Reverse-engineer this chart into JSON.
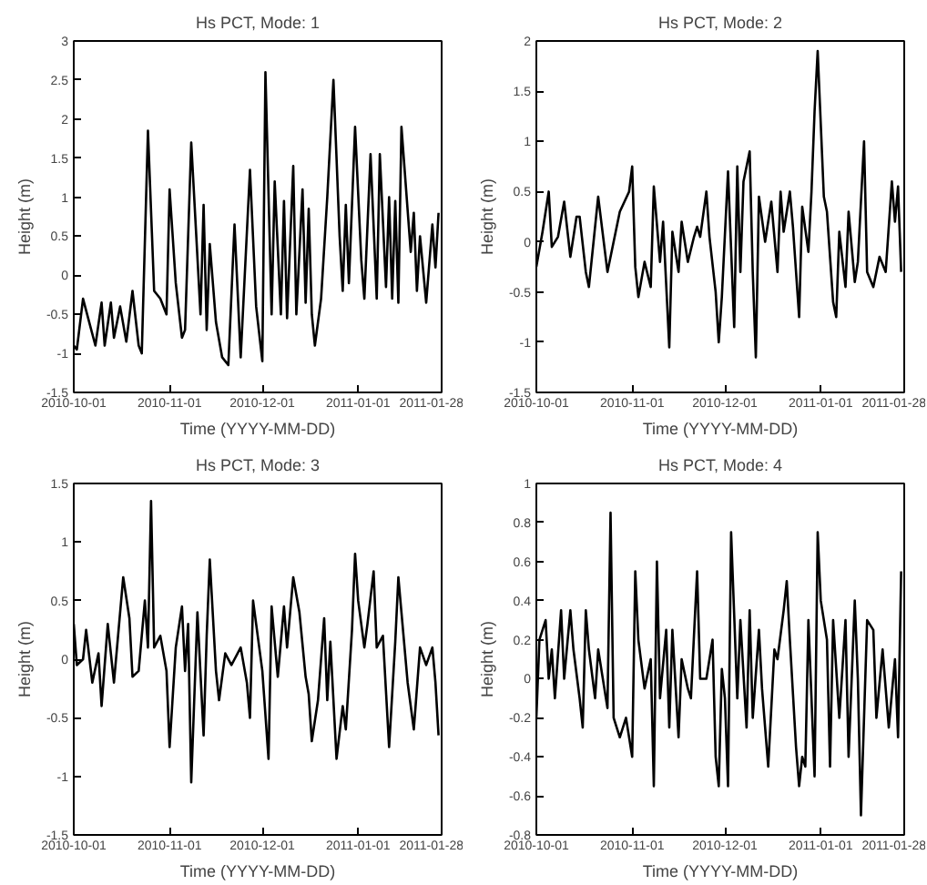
{
  "chart_data": [
    {
      "type": "line",
      "title": "Hs PCT, Mode: 1",
      "xlabel": "Time (YYYY-MM-DD)",
      "ylabel": "Height (m)",
      "color": "#000000",
      "grid": false,
      "xlim": [
        "2010-10-01",
        "2011-01-28"
      ],
      "xticks": [
        "2010-10-01",
        "2010-11-01",
        "2010-12-01",
        "2011-01-01",
        "2011-01-28"
      ],
      "ylim": [
        -1.5,
        3
      ],
      "yticks": [
        -1.5,
        -1,
        -0.5,
        0,
        0.5,
        1,
        1.5,
        2,
        2.5,
        3
      ],
      "x": [
        "2010-10-01",
        "2010-10-02",
        "2010-10-04",
        "2010-10-06",
        "2010-10-08",
        "2010-10-10",
        "2010-10-11",
        "2010-10-13",
        "2010-10-14",
        "2010-10-16",
        "2010-10-18",
        "2010-10-20",
        "2010-10-22",
        "2010-10-23",
        "2010-10-25",
        "2010-10-27",
        "2010-10-29",
        "2010-10-31",
        "2010-11-01",
        "2010-11-03",
        "2010-11-05",
        "2010-11-06",
        "2010-11-08",
        "2010-11-11",
        "2010-11-12",
        "2010-11-13",
        "2010-11-14",
        "2010-11-16",
        "2010-11-18",
        "2010-11-20",
        "2010-11-22",
        "2010-11-24",
        "2010-11-27",
        "2010-11-29",
        "2010-12-01",
        "2010-12-02",
        "2010-12-04",
        "2010-12-05",
        "2010-12-07",
        "2010-12-08",
        "2010-12-09",
        "2010-12-11",
        "2010-12-12",
        "2010-12-14",
        "2010-12-15",
        "2010-12-16",
        "2010-12-17",
        "2010-12-18",
        "2010-12-20",
        "2010-12-22",
        "2010-12-24",
        "2010-12-26",
        "2010-12-27",
        "2010-12-28",
        "2010-12-29",
        "2010-12-31",
        "2011-01-02",
        "2011-01-03",
        "2011-01-05",
        "2011-01-07",
        "2011-01-08",
        "2011-01-10",
        "2011-01-11",
        "2011-01-12",
        "2011-01-13",
        "2011-01-14",
        "2011-01-15",
        "2011-01-18",
        "2011-01-19",
        "2011-01-20",
        "2011-01-21",
        "2011-01-23",
        "2011-01-25",
        "2011-01-26",
        "2011-01-27"
      ],
      "values": [
        -0.9,
        -0.95,
        -0.3,
        -0.6,
        -0.9,
        -0.35,
        -0.9,
        -0.35,
        -0.8,
        -0.4,
        -0.85,
        -0.2,
        -0.9,
        -1.0,
        1.85,
        -0.2,
        -0.3,
        -0.5,
        1.1,
        -0.1,
        -0.8,
        -0.7,
        1.7,
        -0.5,
        0.9,
        -0.7,
        0.4,
        -0.6,
        -1.05,
        -1.15,
        0.65,
        -1.05,
        1.35,
        -0.4,
        -1.1,
        2.6,
        -0.5,
        1.2,
        -0.5,
        0.95,
        -0.55,
        1.4,
        -0.5,
        1.1,
        -0.35,
        0.85,
        -0.5,
        -0.9,
        -0.3,
        1.0,
        2.5,
        0.5,
        -0.2,
        0.9,
        -0.1,
        1.9,
        0.2,
        -0.3,
        1.55,
        -0.3,
        1.55,
        -0.15,
        1.0,
        -0.3,
        0.95,
        -0.35,
        1.9,
        0.3,
        0.8,
        -0.2,
        0.5,
        -0.35,
        0.65,
        0.1,
        0.8
      ]
    },
    {
      "type": "line",
      "title": "Hs PCT, Mode: 2",
      "xlabel": "Time (YYYY-MM-DD)",
      "ylabel": "Height (m)",
      "color": "#000000",
      "grid": false,
      "xlim": [
        "2010-10-01",
        "2011-01-28"
      ],
      "xticks": [
        "2010-10-01",
        "2010-11-01",
        "2010-12-01",
        "2011-01-01",
        "2011-01-28"
      ],
      "ylim": [
        -1.5,
        2
      ],
      "yticks": [
        -1.5,
        -1,
        -0.5,
        0,
        0.5,
        1,
        1.5,
        2
      ],
      "x": [
        "2010-10-01",
        "2010-10-03",
        "2010-10-05",
        "2010-10-06",
        "2010-10-08",
        "2010-10-10",
        "2010-10-12",
        "2010-10-14",
        "2010-10-15",
        "2010-10-17",
        "2010-10-18",
        "2010-10-21",
        "2010-10-24",
        "2010-10-26",
        "2010-10-28",
        "2010-10-31",
        "2010-11-01",
        "2010-11-02",
        "2010-11-03",
        "2010-11-05",
        "2010-11-07",
        "2010-11-08",
        "2010-11-10",
        "2010-11-11",
        "2010-11-13",
        "2010-11-14",
        "2010-11-16",
        "2010-11-17",
        "2010-11-19",
        "2010-11-21",
        "2010-11-22",
        "2010-11-23",
        "2010-11-25",
        "2010-11-26",
        "2010-11-28",
        "2010-11-29",
        "2010-11-30",
        "2010-12-02",
        "2010-12-04",
        "2010-12-05",
        "2010-12-06",
        "2010-12-07",
        "2010-12-09",
        "2010-12-10",
        "2010-12-11",
        "2010-12-12",
        "2010-12-14",
        "2010-12-16",
        "2010-12-18",
        "2010-12-19",
        "2010-12-20",
        "2010-12-22",
        "2010-12-23",
        "2010-12-25",
        "2010-12-26",
        "2010-12-28",
        "2010-12-29",
        "2010-12-30",
        "2010-12-31",
        "2011-01-02",
        "2011-01-03",
        "2011-01-05",
        "2011-01-06",
        "2011-01-07",
        "2011-01-09",
        "2011-01-10",
        "2011-01-12",
        "2011-01-13",
        "2011-01-15",
        "2011-01-16",
        "2011-01-18",
        "2011-01-20",
        "2011-01-22",
        "2011-01-24",
        "2011-01-25",
        "2011-01-26",
        "2011-01-27"
      ],
      "values": [
        -0.25,
        0.1,
        0.5,
        -0.05,
        0.05,
        0.4,
        -0.15,
        0.25,
        0.25,
        -0.3,
        -0.45,
        0.45,
        -0.3,
        0.0,
        0.3,
        0.5,
        0.75,
        -0.25,
        -0.55,
        -0.2,
        -0.45,
        0.55,
        -0.2,
        0.2,
        -1.05,
        0.1,
        -0.3,
        0.2,
        -0.2,
        0.05,
        0.15,
        0.05,
        0.5,
        0.05,
        -0.5,
        -1.0,
        -0.55,
        0.7,
        -0.85,
        0.75,
        -0.3,
        0.6,
        0.9,
        -0.3,
        -1.15,
        0.45,
        0.0,
        0.4,
        -0.3,
        0.5,
        0.1,
        0.5,
        0.15,
        -0.75,
        0.35,
        -0.1,
        0.5,
        1.3,
        1.9,
        0.45,
        0.3,
        -0.6,
        -0.75,
        0.1,
        -0.45,
        0.3,
        -0.4,
        -0.2,
        1.0,
        -0.3,
        -0.45,
        -0.15,
        -0.3,
        0.6,
        0.2,
        0.55,
        -0.3
      ]
    },
    {
      "type": "line",
      "title": "Hs PCT, Mode: 3",
      "xlabel": "Time (YYYY-MM-DD)",
      "ylabel": "Height (m)",
      "color": "#000000",
      "grid": false,
      "xlim": [
        "2010-10-01",
        "2011-01-28"
      ],
      "xticks": [
        "2010-10-01",
        "2010-11-01",
        "2010-12-01",
        "2011-01-01",
        "2011-01-28"
      ],
      "ylim": [
        -1.5,
        1.5
      ],
      "yticks": [
        -1.5,
        -1,
        -0.5,
        0,
        0.5,
        1,
        1.5
      ],
      "x": [
        "2010-10-01",
        "2010-10-02",
        "2010-10-04",
        "2010-10-05",
        "2010-10-07",
        "2010-10-09",
        "2010-10-10",
        "2010-10-12",
        "2010-10-14",
        "2010-10-15",
        "2010-10-17",
        "2010-10-19",
        "2010-10-20",
        "2010-10-22",
        "2010-10-24",
        "2010-10-25",
        "2010-10-26",
        "2010-10-27",
        "2010-10-29",
        "2010-10-31",
        "2010-11-01",
        "2010-11-03",
        "2010-11-05",
        "2010-11-06",
        "2010-11-07",
        "2010-11-08",
        "2010-11-10",
        "2010-11-12",
        "2010-11-13",
        "2010-11-14",
        "2010-11-16",
        "2010-11-17",
        "2010-11-19",
        "2010-11-21",
        "2010-11-24",
        "2010-11-26",
        "2010-11-27",
        "2010-11-28",
        "2010-11-29",
        "2010-12-01",
        "2010-12-03",
        "2010-12-04",
        "2010-12-06",
        "2010-12-08",
        "2010-12-09",
        "2010-12-11",
        "2010-12-13",
        "2010-12-15",
        "2010-12-16",
        "2010-12-17",
        "2010-12-19",
        "2010-12-21",
        "2010-12-22",
        "2010-12-23",
        "2010-12-25",
        "2010-12-27",
        "2010-12-28",
        "2010-12-30",
        "2010-12-31",
        "2011-01-01",
        "2011-01-03",
        "2011-01-04",
        "2011-01-06",
        "2011-01-07",
        "2011-01-09",
        "2011-01-11",
        "2011-01-13",
        "2011-01-14",
        "2011-01-15",
        "2011-01-17",
        "2011-01-19",
        "2011-01-21",
        "2011-01-23",
        "2011-01-25",
        "2011-01-26",
        "2011-01-27"
      ],
      "values": [
        0.3,
        -0.05,
        0.0,
        0.25,
        -0.2,
        0.05,
        -0.4,
        0.3,
        -0.2,
        0.1,
        0.7,
        0.35,
        -0.15,
        -0.1,
        0.5,
        0.1,
        1.35,
        0.1,
        0.2,
        -0.1,
        -0.75,
        0.1,
        0.45,
        -0.1,
        0.3,
        -1.05,
        0.4,
        -0.65,
        0.2,
        0.85,
        -0.1,
        -0.35,
        0.05,
        -0.05,
        0.1,
        -0.2,
        -0.5,
        0.5,
        0.3,
        -0.1,
        -0.85,
        0.45,
        -0.15,
        0.45,
        0.1,
        0.7,
        0.4,
        -0.15,
        -0.3,
        -0.7,
        -0.35,
        0.35,
        -0.35,
        0.15,
        -0.85,
        -0.4,
        -0.6,
        0.25,
        0.9,
        0.5,
        0.1,
        0.3,
        0.75,
        0.1,
        0.2,
        -0.75,
        0.15,
        0.7,
        0.4,
        -0.2,
        -0.6,
        0.1,
        -0.05,
        0.1,
        -0.2,
        -0.65
      ]
    },
    {
      "type": "line",
      "title": "Hs PCT, Mode: 4",
      "xlabel": "Time (YYYY-MM-DD)",
      "ylabel": "Height (m)",
      "color": "#000000",
      "grid": false,
      "xlim": [
        "2010-10-01",
        "2011-01-28"
      ],
      "xticks": [
        "2010-10-01",
        "2010-11-01",
        "2010-12-01",
        "2011-01-01",
        "2011-01-28"
      ],
      "ylim": [
        -0.8,
        1
      ],
      "yticks": [
        -0.8,
        -0.6,
        -0.4,
        -0.2,
        0,
        0.2,
        0.4,
        0.6,
        0.8,
        1
      ],
      "x": [
        "2010-10-01",
        "2010-10-02",
        "2010-10-04",
        "2010-10-05",
        "2010-10-06",
        "2010-10-07",
        "2010-10-09",
        "2010-10-10",
        "2010-10-12",
        "2010-10-13",
        "2010-10-15",
        "2010-10-16",
        "2010-10-17",
        "2010-10-18",
        "2010-10-20",
        "2010-10-21",
        "2010-10-23",
        "2010-10-24",
        "2010-10-25",
        "2010-10-26",
        "2010-10-28",
        "2010-10-30",
        "2010-11-01",
        "2010-11-02",
        "2010-11-03",
        "2010-11-05",
        "2010-11-07",
        "2010-11-08",
        "2010-11-09",
        "2010-11-10",
        "2010-11-12",
        "2010-11-13",
        "2010-11-14",
        "2010-11-16",
        "2010-11-17",
        "2010-11-19",
        "2010-11-20",
        "2010-11-22",
        "2010-11-23",
        "2010-11-25",
        "2010-11-27",
        "2010-11-28",
        "2010-11-29",
        "2010-11-30",
        "2010-12-01",
        "2010-12-02",
        "2010-12-03",
        "2010-12-05",
        "2010-12-06",
        "2010-12-08",
        "2010-12-09",
        "2010-12-10",
        "2010-12-12",
        "2010-12-13",
        "2010-12-15",
        "2010-12-17",
        "2010-12-18",
        "2010-12-20",
        "2010-12-21",
        "2010-12-22",
        "2010-12-24",
        "2010-12-25",
        "2010-12-26",
        "2010-12-27",
        "2010-12-28",
        "2010-12-30",
        "2010-12-31",
        "2011-01-01",
        "2011-01-03",
        "2011-01-04",
        "2011-01-05",
        "2011-01-07",
        "2011-01-09",
        "2011-01-10",
        "2011-01-12",
        "2011-01-13",
        "2011-01-14",
        "2011-01-16",
        "2011-01-18",
        "2011-01-19",
        "2011-01-21",
        "2011-01-23",
        "2011-01-25",
        "2011-01-26",
        "2011-01-27"
      ],
      "values": [
        -0.2,
        0.2,
        0.3,
        0.0,
        0.15,
        -0.1,
        0.35,
        0.0,
        0.35,
        0.15,
        -0.1,
        -0.25,
        0.35,
        0.15,
        -0.1,
        0.15,
        -0.05,
        -0.15,
        0.85,
        -0.2,
        -0.3,
        -0.2,
        -0.4,
        0.55,
        0.2,
        -0.05,
        0.1,
        -0.55,
        0.6,
        -0.1,
        0.25,
        -0.25,
        0.25,
        -0.3,
        0.1,
        -0.05,
        -0.1,
        0.55,
        0.0,
        0.0,
        0.2,
        -0.4,
        -0.55,
        0.05,
        -0.1,
        -0.55,
        0.75,
        -0.1,
        0.3,
        -0.25,
        0.35,
        -0.2,
        0.25,
        -0.05,
        -0.45,
        0.15,
        0.1,
        0.35,
        0.5,
        0.2,
        -0.35,
        -0.55,
        -0.4,
        -0.45,
        0.3,
        -0.5,
        0.75,
        0.4,
        0.2,
        -0.45,
        0.3,
        -0.2,
        0.3,
        -0.4,
        0.4,
        0.0,
        -0.7,
        0.3,
        0.25,
        -0.2,
        0.15,
        -0.25,
        0.1,
        -0.3,
        0.55
      ]
    }
  ]
}
